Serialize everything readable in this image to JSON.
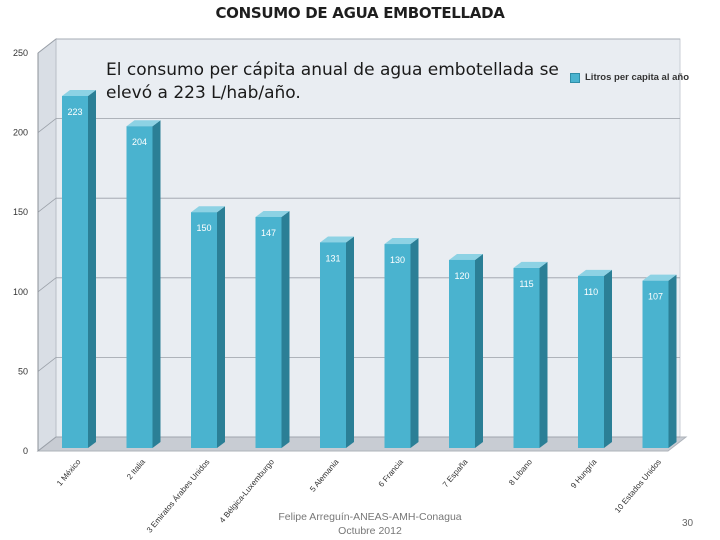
{
  "title": "CONSUMO DE AGUA EMBOTELLADA",
  "subtitle": "El consumo per cápita anual de agua embotellada se elevó a 223 L/hab/año.",
  "footer": {
    "line1": "Felipe Arreguín-ANEAS-AMH-Conagua",
    "line2": "Octubre 2012"
  },
  "page_number": "30",
  "colors": {
    "bar": "#4ab3cf",
    "bar_side": "#2b7f96",
    "bar_top": "#8dd2e4"
  },
  "chart_data": {
    "type": "bar",
    "title": "CONSUMO DE AGUA EMBOTELLADA",
    "categories": [
      "1 México",
      "2 Italia",
      "3 Emiratos Árabes Unidos",
      "4 Bélgica-Luxemburgo",
      "5 Alemania",
      "6 Francia",
      "7 España",
      "8 Líbano",
      "9 Hungría",
      "10 Estados Unidos"
    ],
    "series": [
      {
        "name": "Litros per capita al año",
        "values": [
          223,
          204,
          150,
          147,
          131,
          130,
          120,
          115,
          110,
          107
        ]
      }
    ],
    "data_labels": [
      "223",
      "204",
      "150",
      "147",
      "131",
      "130",
      "120",
      "115",
      "110",
      "107"
    ],
    "yticks": [
      "0",
      "50",
      "100",
      "150",
      "200",
      "250"
    ],
    "ylim": [
      0,
      250
    ],
    "xlabel": "",
    "ylabel": "",
    "legend": "top-right",
    "grid": true
  }
}
